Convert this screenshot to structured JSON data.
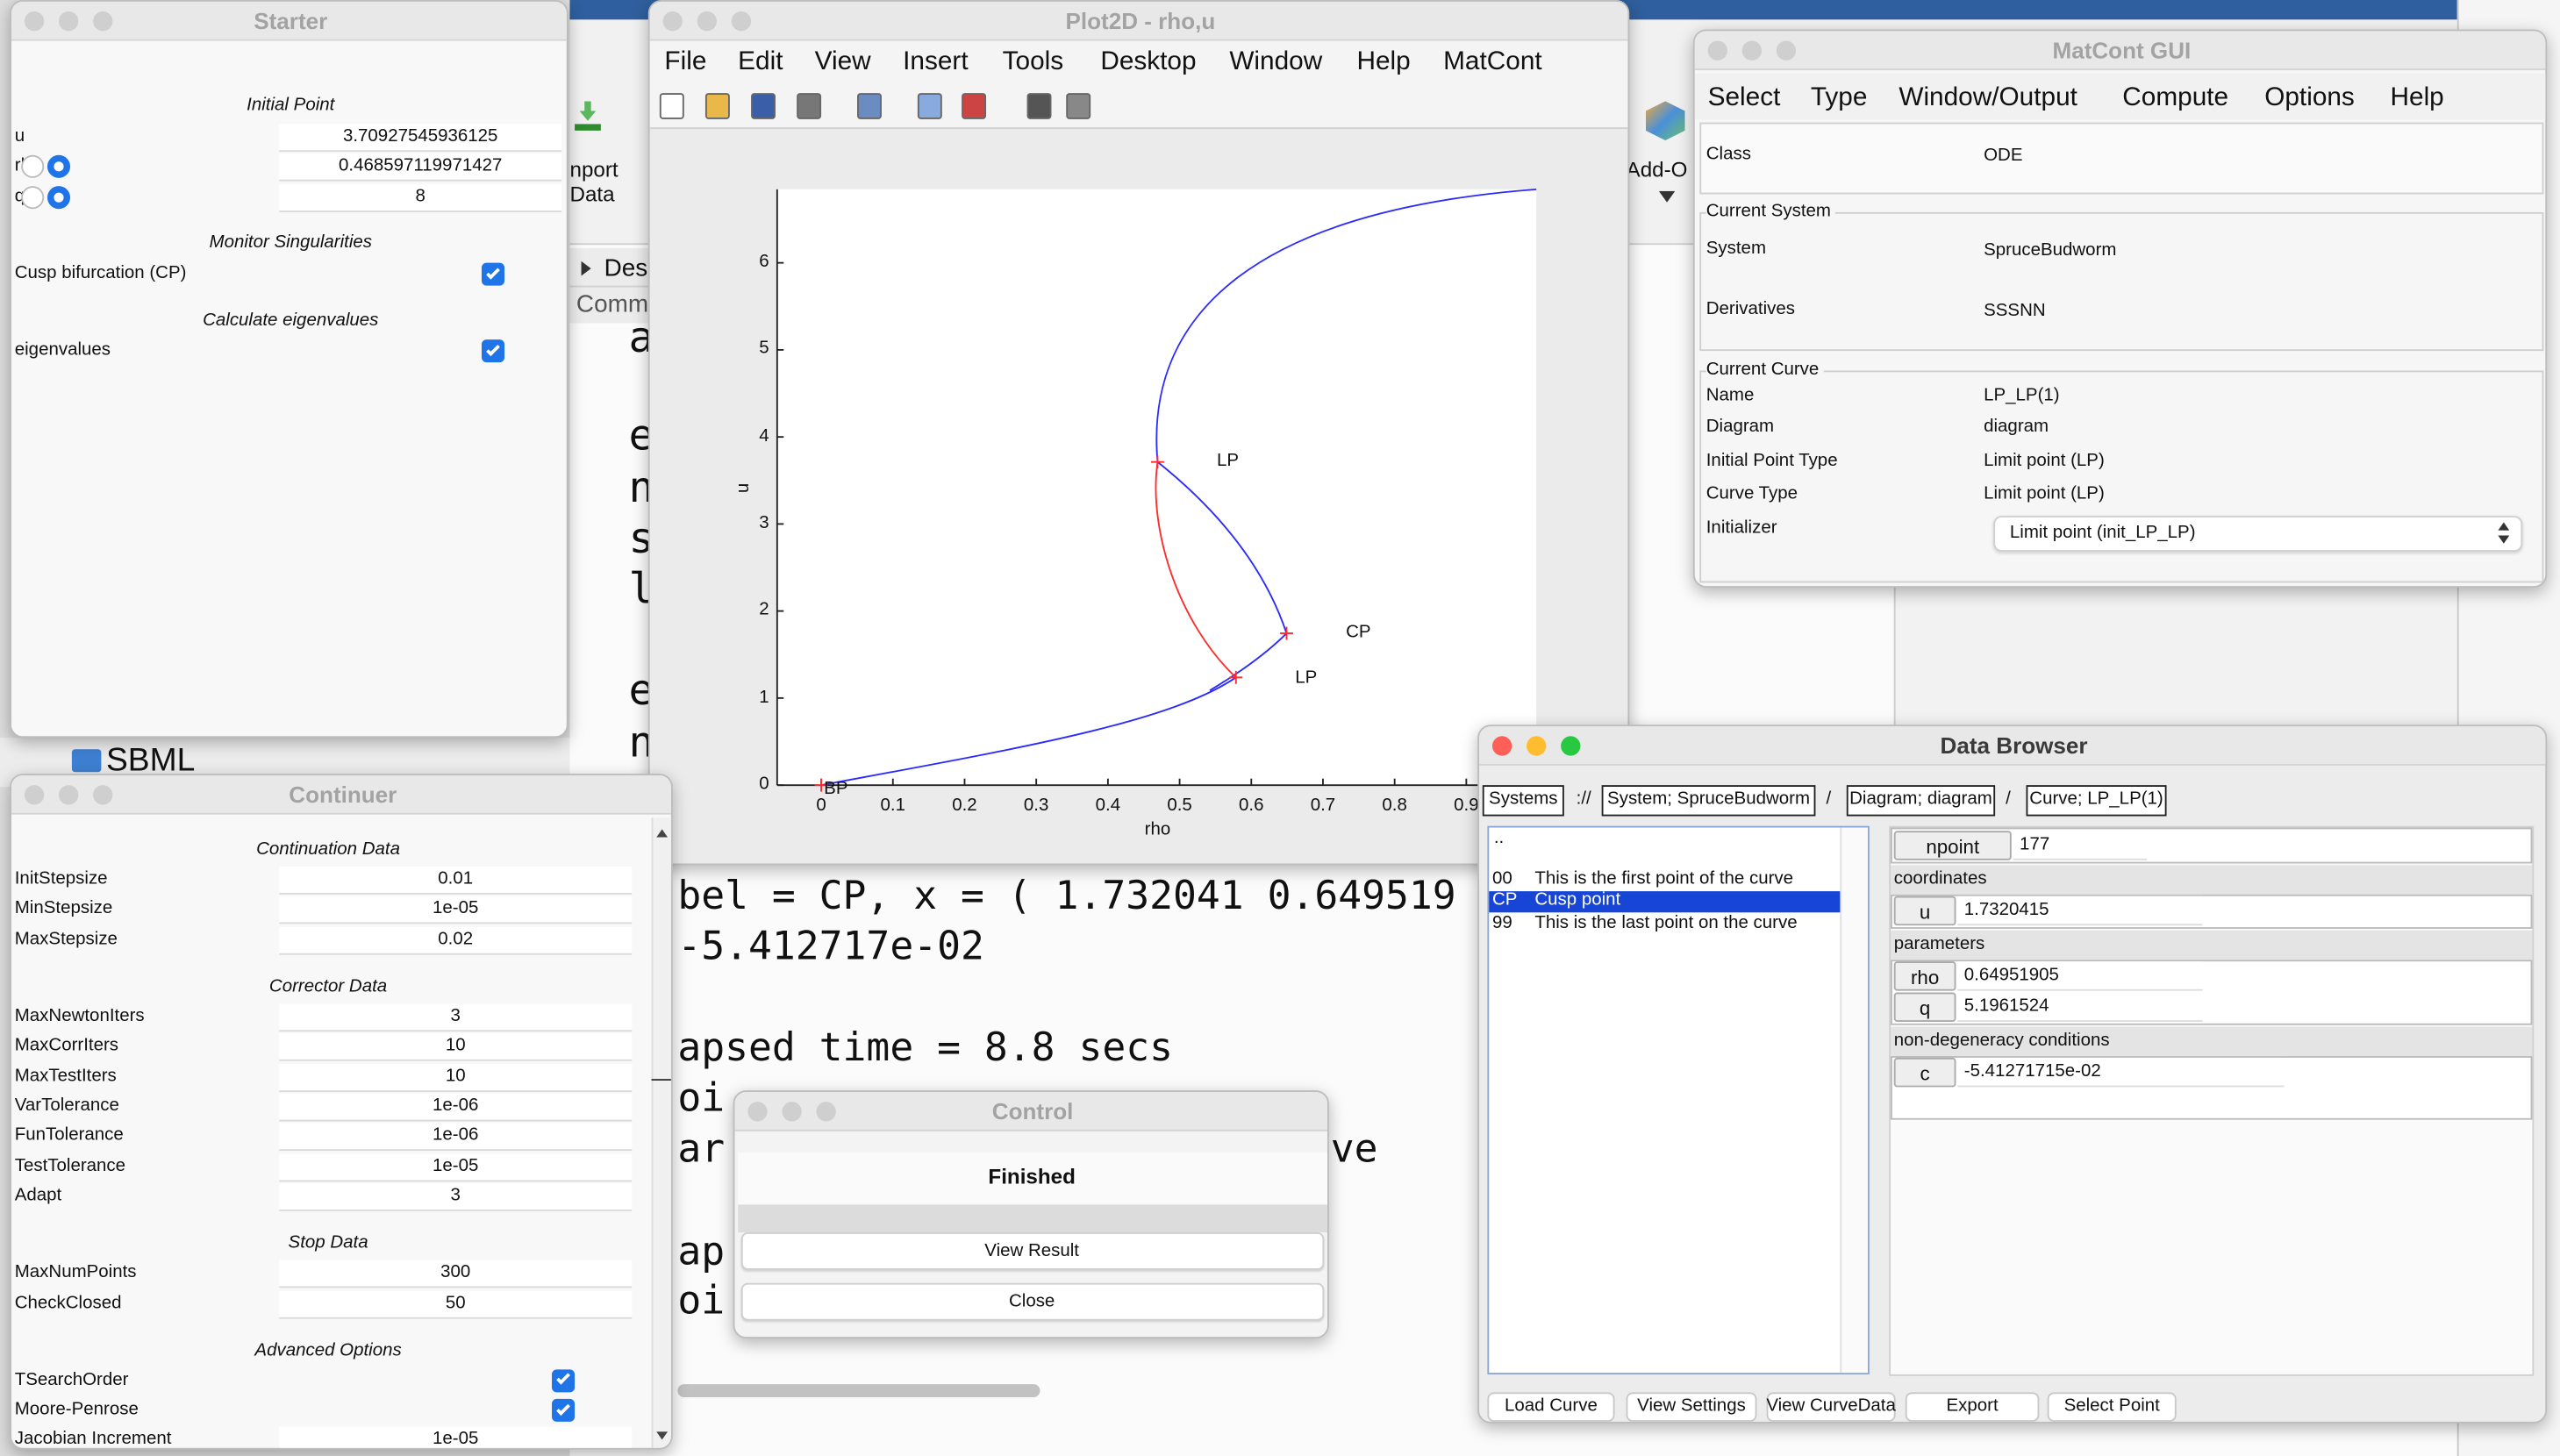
{
  "desktop": {
    "toolstrip": [
      "nport",
      "Data",
      "Add-O"
    ],
    "sections": [
      "Des",
      "Comm"
    ],
    "folder": "SBML",
    "side_letters": [
      "a",
      "e",
      "n",
      "s",
      "l",
      "e",
      "n"
    ],
    "command_lines": [
      "bel = CP, x = ( 1.732041 0.649519",
      "-5.412717e-02",
      "apsed time  = 8.8 secs",
      "oi",
      "ar",
      "ve",
      "ap",
      "oi"
    ]
  },
  "starter": {
    "title": "Starter",
    "section_initial": "Initial Point",
    "point": [
      {
        "name": "u",
        "value": "3.70927545936125"
      },
      {
        "name": "rho",
        "value": "0.468597119971427"
      },
      {
        "name": "q",
        "value": "8"
      }
    ],
    "section_monitor": "Monitor Singularities",
    "monitor": {
      "label": "Cusp bifurcation (CP)",
      "checked": true
    },
    "section_eigen": "Calculate eigenvalues",
    "eigen": {
      "label": "eigenvalues",
      "checked": true
    }
  },
  "plot": {
    "title": "Plot2D - rho,u",
    "menu": [
      "File",
      "Edit",
      "View",
      "Insert",
      "Tools",
      "Desktop",
      "Window",
      "Help",
      "MatCont"
    ],
    "xticks": [
      0,
      0.1,
      0.2,
      0.3,
      0.4,
      0.5,
      0.6,
      0.7,
      0.8,
      0.9
    ],
    "yticks": [
      0,
      1,
      2,
      3,
      4,
      5,
      6
    ],
    "xlabel": "rho",
    "ylabel": "u",
    "point_labels": [
      "LP",
      "CP",
      "LP",
      "BP"
    ]
  },
  "matcont": {
    "title": "MatCont GUI",
    "menu": [
      "Select",
      "Type",
      "Window/Output",
      "Compute",
      "Options",
      "Help"
    ],
    "class": {
      "label": "Class",
      "value": "ODE"
    },
    "system_group": "Current System",
    "system": [
      {
        "label": "System",
        "value": "SpruceBudworm"
      },
      {
        "label": "Derivatives",
        "value": "SSSNN"
      }
    ],
    "curve_group": "Current Curve",
    "curve": [
      {
        "label": "Name",
        "value": "LP_LP(1)"
      },
      {
        "label": "Diagram",
        "value": "diagram"
      },
      {
        "label": "Initial Point Type",
        "value": "Limit point (LP)"
      },
      {
        "label": "Curve Type",
        "value": "Limit point (LP)"
      }
    ],
    "initializer": {
      "label": "Initializer",
      "value": "Limit point (init_LP_LP)"
    }
  },
  "continuer": {
    "title": "Continuer",
    "groups": [
      {
        "heading": "Continuation Data",
        "rows": [
          {
            "label": "InitStepsize",
            "value": "0.01"
          },
          {
            "label": "MinStepsize",
            "value": "1e-05"
          },
          {
            "label": "MaxStepsize",
            "value": "0.02"
          }
        ]
      },
      {
        "heading": "Corrector Data",
        "rows": [
          {
            "label": "MaxNewtonIters",
            "value": "3"
          },
          {
            "label": "MaxCorrIters",
            "value": "10"
          },
          {
            "label": "MaxTestIters",
            "value": "10"
          },
          {
            "label": "VarTolerance",
            "value": "1e-06"
          },
          {
            "label": "FunTolerance",
            "value": "1e-06"
          },
          {
            "label": "TestTolerance",
            "value": "1e-05"
          },
          {
            "label": "Adapt",
            "value": "3"
          }
        ]
      },
      {
        "heading": "Stop Data",
        "rows": [
          {
            "label": "MaxNumPoints",
            "value": "300"
          },
          {
            "label": "CheckClosed",
            "value": "50"
          }
        ]
      },
      {
        "heading": "Advanced Options",
        "rows": [
          {
            "label": "TSearchOrder",
            "checked": true
          },
          {
            "label": "Moore-Penrose",
            "checked": true
          },
          {
            "label": "Jacobian Increment",
            "value": "1e-05"
          }
        ]
      }
    ]
  },
  "control": {
    "title": "Control",
    "status": "Finished",
    "buttons": [
      "View Result",
      "Close"
    ]
  },
  "data_browser": {
    "title": "Data Browser",
    "path": [
      "Systems",
      "://",
      "System; SpruceBudworm",
      "/",
      "Diagram; diagram",
      "/",
      "Curve; LP_LP(1)"
    ],
    "list_up": "..",
    "points": [
      {
        "id": "00",
        "text": "This is the first point of the curve"
      },
      {
        "id": "CP",
        "text": "Cusp point",
        "selected": true
      },
      {
        "id": "99",
        "text": "This is the last point on the curve"
      }
    ],
    "npoint": {
      "label": "npoint",
      "value": "177"
    },
    "sections": [
      {
        "heading": "coordinates",
        "rows": [
          {
            "label": "u",
            "value": "1.7320415"
          }
        ]
      },
      {
        "heading": "parameters",
        "rows": [
          {
            "label": "rho",
            "value": "0.64951905"
          },
          {
            "label": "q",
            "value": "5.1961524"
          }
        ]
      },
      {
        "heading": "non-degeneracy conditions",
        "rows": [
          {
            "label": "c",
            "value": "-5.41271715e-02"
          }
        ]
      }
    ],
    "buttons": [
      "Load Curve",
      "View Settings",
      "View CurveData",
      "Export",
      "Select Point"
    ]
  }
}
